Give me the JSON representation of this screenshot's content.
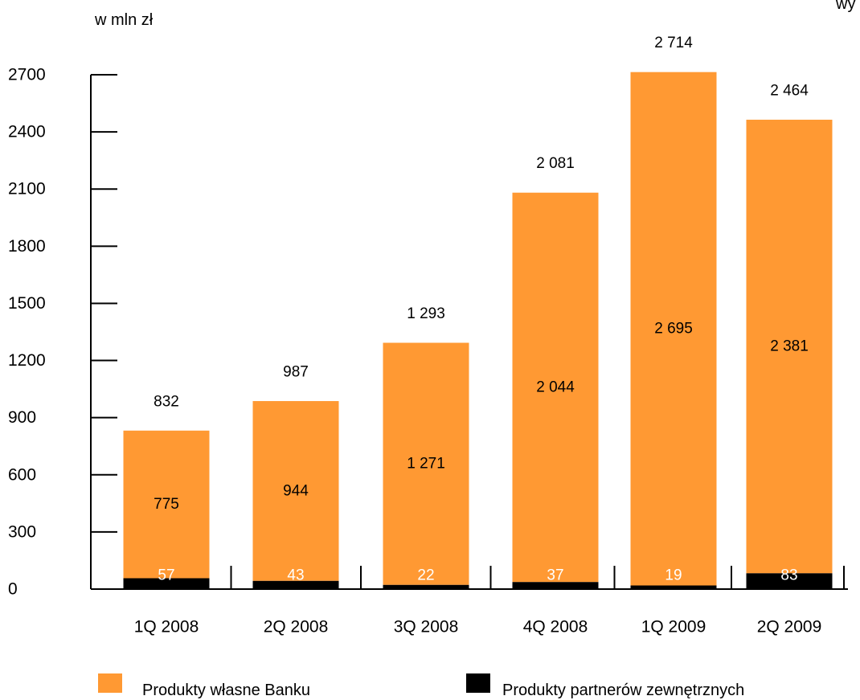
{
  "top_label": "w mln zł",
  "corner_text": "wy",
  "colors": {
    "own": "#FF9933",
    "partners": "#000000",
    "axis": "#000000"
  },
  "legend": [
    {
      "label": "Produkty własne Banku",
      "color": "#FF9933"
    },
    {
      "label": "Produkty partnerów zewnętrznych",
      "color": "#000000"
    }
  ],
  "chart_data": {
    "type": "bar",
    "stacked": true,
    "title": "",
    "xlabel": "",
    "ylabel": "w mln zł",
    "ylim": [
      0,
      2700
    ],
    "yticks": [
      "0",
      "300",
      "600",
      "900",
      "1200",
      "1500",
      "1800",
      "2100",
      "2400",
      "2700"
    ],
    "categories": [
      "1Q 2008",
      "2Q 2008",
      "3Q 2008",
      "4Q 2008",
      "1Q 2009",
      "2Q 2009"
    ],
    "series": [
      {
        "name": "Produkty partnerów zewnętrznych",
        "values": [
          57,
          43,
          22,
          37,
          19,
          83
        ],
        "labels": [
          "57",
          "43",
          "22",
          "37",
          "19",
          "83"
        ]
      },
      {
        "name": "Produkty własne Banku",
        "values": [
          775,
          944,
          1271,
          2044,
          2695,
          2381
        ],
        "labels": [
          "775",
          "944",
          "1 271",
          "2 044",
          "2 695",
          "2 381"
        ]
      }
    ],
    "totals": [
      832,
      987,
      1293,
      2081,
      2714,
      2464
    ],
    "total_labels": [
      "832",
      "987",
      "1 293",
      "2 081",
      "2 714",
      "2 464"
    ],
    "grid": false,
    "legend_position": "bottom"
  }
}
